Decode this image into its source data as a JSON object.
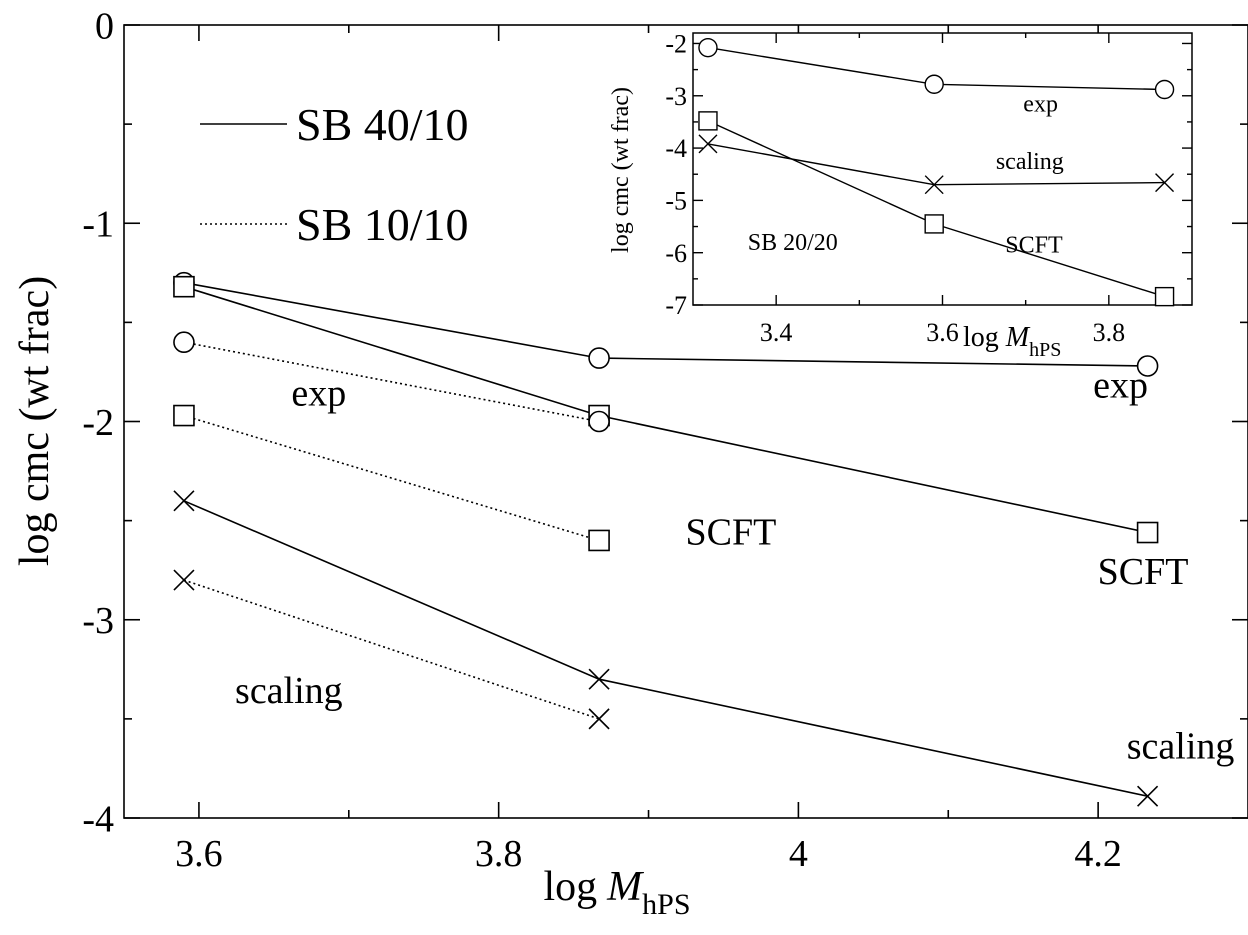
{
  "chart_data": [
    {
      "type": "line",
      "title": "",
      "xlabel": "log M_hPS",
      "xlabel_parts": {
        "prefix": "log",
        "var": "M",
        "sub": "hPS"
      },
      "ylabel": "log cmc (wt frac)",
      "xlim": [
        3.55,
        4.3
      ],
      "ylim": [
        -4,
        0
      ],
      "xticks": [
        3.6,
        3.8,
        4,
        4.2
      ],
      "xtick_labels": [
        "3.6",
        "3.8",
        "4",
        "4.2"
      ],
      "yticks": [
        0,
        -1,
        -2,
        -3,
        -4
      ],
      "ytick_labels": [
        "0",
        "-1",
        "-2",
        "-3",
        "-4"
      ],
      "grid": false,
      "legend_position": "top-left",
      "legend": [
        {
          "label": "SB 40/10",
          "style": "solid"
        },
        {
          "label": "SB 10/10",
          "style": "dotted"
        }
      ],
      "series": [
        {
          "group": "SB 40/10",
          "style": "solid",
          "marker": "circle",
          "x": [
            3.59,
            3.867,
            4.233
          ],
          "y": [
            -1.3,
            -1.68,
            -1.72
          ]
        },
        {
          "group": "SB 40/10",
          "style": "solid",
          "marker": "square",
          "x": [
            3.59,
            3.867,
            4.233
          ],
          "y": [
            -1.32,
            -1.97,
            -2.56
          ]
        },
        {
          "group": "SB 40/10",
          "style": "solid",
          "marker": "x",
          "x": [
            3.59,
            3.867,
            4.233
          ],
          "y": [
            -2.4,
            -3.3,
            -3.89
          ]
        },
        {
          "group": "SB 10/10",
          "style": "dotted",
          "marker": "circle",
          "x": [
            3.59,
            3.867
          ],
          "y": [
            -1.6,
            -2.0
          ]
        },
        {
          "group": "SB 10/10",
          "style": "dotted",
          "marker": "square",
          "x": [
            3.59,
            3.867
          ],
          "y": [
            -1.97,
            -2.6
          ]
        },
        {
          "group": "SB 10/10",
          "style": "dotted",
          "marker": "x",
          "x": [
            3.59,
            3.867
          ],
          "y": [
            -2.8,
            -3.5
          ]
        }
      ],
      "annotations": [
        {
          "text": "exp",
          "x": 3.68,
          "y": -1.92
        },
        {
          "text": "SCFT",
          "x": 3.955,
          "y": -2.62
        },
        {
          "text": "scaling",
          "x": 3.66,
          "y": -3.42
        },
        {
          "text": "exp",
          "x": 4.215,
          "y": -1.88
        },
        {
          "text": "SCFT",
          "x": 4.23,
          "y": -2.82
        },
        {
          "text": "scaling",
          "x": 4.255,
          "y": -3.7
        }
      ]
    },
    {
      "type": "line",
      "title": "",
      "xlabel": "log M_hPS",
      "xlabel_parts": {
        "prefix": "log",
        "var": "M",
        "sub": "hPS"
      },
      "ylabel": "log cmc (wt frac)",
      "xlim": [
        3.3,
        3.9
      ],
      "ylim": [
        -7,
        -1.8
      ],
      "xticks": [
        3.4,
        3.6,
        3.8
      ],
      "xtick_labels": [
        "3.4",
        "3.6",
        "3.8"
      ],
      "yticks": [
        -2,
        -3,
        -4,
        -5,
        -6,
        -7
      ],
      "ytick_labels": [
        "-2",
        "-3",
        "-4",
        "-5",
        "-6",
        "-7"
      ],
      "grid": false,
      "series": [
        {
          "group": "SB 20/20",
          "style": "solid",
          "marker": "circle",
          "x": [
            3.318,
            3.59,
            3.867
          ],
          "y": [
            -2.08,
            -2.78,
            -2.88
          ]
        },
        {
          "group": "SB 20/20",
          "style": "solid",
          "marker": "square",
          "x": [
            3.318,
            3.59,
            3.867
          ],
          "y": [
            -3.48,
            -5.45,
            -6.84
          ]
        },
        {
          "group": "SB 20/20",
          "style": "solid",
          "marker": "x",
          "x": [
            3.318,
            3.59,
            3.867
          ],
          "y": [
            -3.92,
            -4.7,
            -4.66
          ]
        }
      ],
      "annotations": [
        {
          "text": "exp",
          "x": 3.718,
          "y": -3.3
        },
        {
          "text": "scaling",
          "x": 3.705,
          "y": -4.4
        },
        {
          "text": "SCFT",
          "x": 3.71,
          "y": -6.0
        },
        {
          "text": "SB 20/20",
          "x": 3.42,
          "y": -5.95
        }
      ]
    }
  ]
}
